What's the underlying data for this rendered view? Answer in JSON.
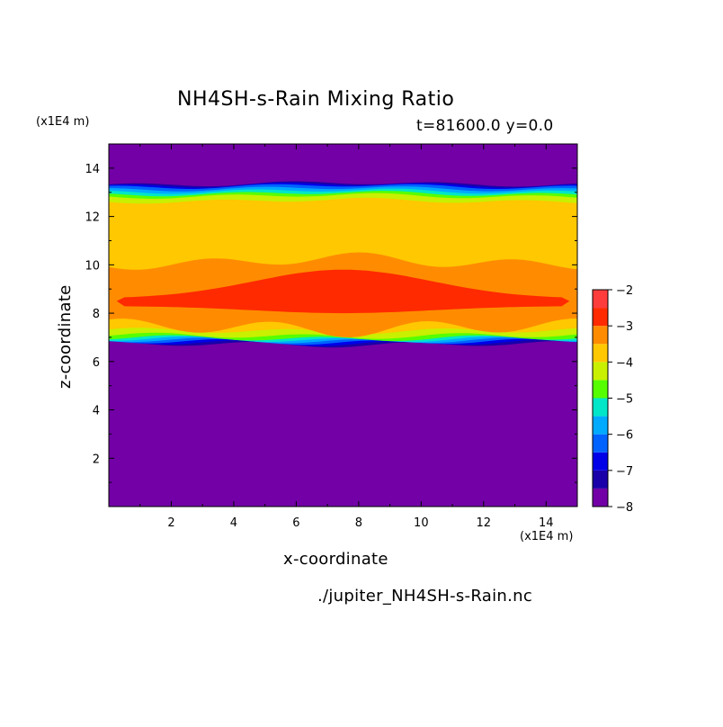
{
  "header": {
    "title": "NH4SH-s-Rain Mixing Ratio",
    "subtitle": "t=81600.0 y=0.0"
  },
  "axes": {
    "x_unit_label": "(x1E4 m)",
    "y_unit_label": "(x1E4 m)",
    "x_title": "x-coordinate",
    "y_title": "z-coordinate"
  },
  "footer": {
    "filename": "./jupiter_NH4SH-s-Rain.nc"
  },
  "chart_data": {
    "type": "heatmap",
    "title": "NH4SH-s-Rain Mixing Ratio",
    "subtitle": "t=81600.0 y=0.0",
    "xlabel": "x-coordinate",
    "ylabel": "z-coordinate",
    "x_unit": "(x1E4 m)",
    "y_unit": "(x1E4 m)",
    "xlim": [
      0,
      15
    ],
    "ylim": [
      0,
      15
    ],
    "x_ticks": [
      2,
      4,
      6,
      8,
      10,
      12,
      14
    ],
    "y_ticks": [
      2,
      4,
      6,
      8,
      10,
      12,
      14
    ],
    "colorbar": {
      "ticks": [
        -8,
        -7,
        -6,
        -5,
        -4,
        -3,
        -2
      ],
      "levels": [
        -8,
        -7.5,
        -7,
        -6.5,
        -6,
        -5.5,
        -5,
        -4.5,
        -4,
        -3.5,
        -3,
        -2.5,
        -2
      ],
      "colors": [
        "#7200a6",
        "#1a00a8",
        "#0000e8",
        "#0062ff",
        "#00aaff",
        "#00e6c8",
        "#56ff00",
        "#c8f000",
        "#ffc800",
        "#ff8c00",
        "#ff2a00",
        "#ff3c3c",
        "#ffaaaa"
      ]
    },
    "bands": [
      {
        "level": -8,
        "color": "#7200a6",
        "z_bottom": 0,
        "z_top": 15
      },
      {
        "level": -7.5,
        "color": "#1a00a8",
        "z_bottom": 6.75,
        "z_top": 13.3
      },
      {
        "level": -7,
        "color": "#0000e8",
        "z_bottom": 6.8,
        "z_top": 13.25
      },
      {
        "level": -6.5,
        "color": "#0062ff",
        "z_bottom": 6.85,
        "z_top": 13.2
      },
      {
        "level": -6,
        "color": "#00aaff",
        "z_bottom": 6.9,
        "z_top": 13.1
      },
      {
        "level": -5.5,
        "color": "#00e6c8",
        "z_bottom": 6.95,
        "z_top": 13.0
      },
      {
        "level": -5,
        "color": "#56ff00",
        "z_bottom": 7.0,
        "z_top": 12.9
      },
      {
        "level": -4.5,
        "color": "#c8f000",
        "z_bottom": 7.1,
        "z_top": 12.8
      },
      {
        "level": -4,
        "color": "#ffc800",
        "z_bottom": 7.3,
        "z_top": 12.6
      },
      {
        "level": -3.5,
        "color": "#ff8c00",
        "z_bottom": 7.5,
        "z_top": 10.0
      },
      {
        "level": -3,
        "color": "#ff2a00",
        "z_bottom": 8.0,
        "z_top": 9.8
      }
    ]
  }
}
